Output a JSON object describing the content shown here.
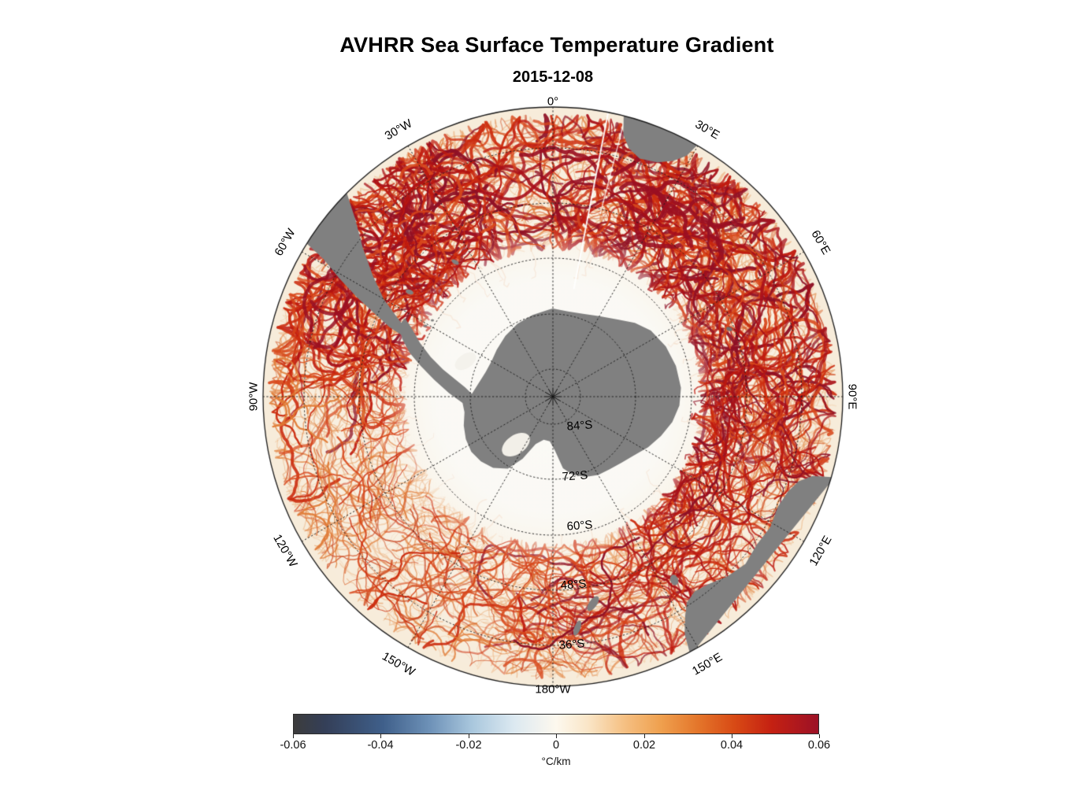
{
  "title": "AVHRR Sea Surface Temperature Gradient",
  "subtitle": "2015-12-08",
  "map": {
    "lon_labels": [
      "0°",
      "30°E",
      "60°E",
      "90°E",
      "120°E",
      "150°E",
      "180°W",
      "150°W",
      "120°W",
      "90°W",
      "60°W",
      "30°W"
    ],
    "lat_labels": [
      "84°S",
      "72°S",
      "60°S",
      "48°S",
      "36°S"
    ]
  },
  "colorbar": {
    "ticks": [
      "-0.06",
      "-0.04",
      "-0.02",
      "0",
      "0.02",
      "0.04",
      "0.06"
    ],
    "unit": "°C/km"
  },
  "chart_data": {
    "type": "heatmap",
    "title": "AVHRR Sea Surface Temperature Gradient",
    "subtitle": "2015-12-08",
    "projection": "south-polar-stereographic",
    "variable": "sea surface temperature gradient",
    "units": "°C/km",
    "colorbar_orientation": "horizontal",
    "colorbar_range": [
      -0.06,
      0.06
    ],
    "colorbar_ticks": [
      -0.06,
      -0.04,
      -0.02,
      0,
      0.02,
      0.04,
      0.06
    ],
    "colormap_stops": [
      {
        "pos": 0.0,
        "color": "#3c3c3c"
      },
      {
        "pos": 0.06,
        "color": "#343f58"
      },
      {
        "pos": 0.17,
        "color": "#3f5f8a"
      },
      {
        "pos": 0.26,
        "color": "#6e92b8"
      },
      {
        "pos": 0.34,
        "color": "#a9c7dd"
      },
      {
        "pos": 0.42,
        "color": "#dce9f1"
      },
      {
        "pos": 0.5,
        "color": "#fdf8ee"
      },
      {
        "pos": 0.56,
        "color": "#fae6c8"
      },
      {
        "pos": 0.63,
        "color": "#f5c083"
      },
      {
        "pos": 0.7,
        "color": "#efa04e"
      },
      {
        "pos": 0.77,
        "color": "#e4762b"
      },
      {
        "pos": 0.84,
        "color": "#d84a15"
      },
      {
        "pos": 0.91,
        "color": "#c52112"
      },
      {
        "pos": 1.0,
        "color": "#9c1126"
      }
    ],
    "latitude_rings_deg_S": [
      84,
      72,
      60,
      48,
      36
    ],
    "longitude_spoke_interval_deg": 30,
    "grid": true,
    "land_color": "#808080",
    "land_regions_visible": [
      "Antarctica",
      "South America tip",
      "Africa tip",
      "Australia",
      "Tasmania",
      "New Zealand"
    ],
    "legend_position": "bottom"
  }
}
